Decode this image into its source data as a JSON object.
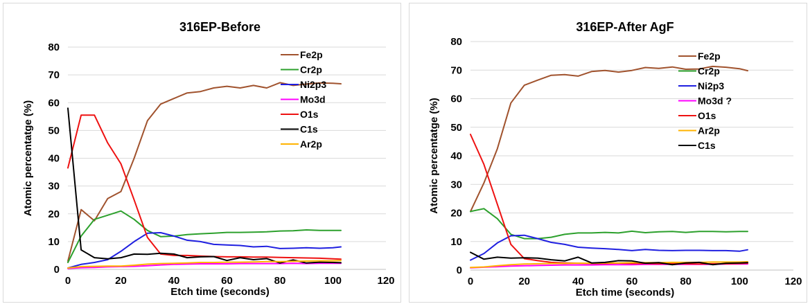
{
  "chart_data": [
    {
      "type": "line",
      "title": "316EP-Before",
      "xlabel": "Etch time (seconds)",
      "ylabel": "Atomic percentatge (%)",
      "xlim": [
        0,
        120
      ],
      "ylim": [
        0,
        80
      ],
      "xticks": [
        0,
        20,
        40,
        60,
        80,
        100,
        120
      ],
      "yticks": [
        0,
        10,
        20,
        30,
        40,
        50,
        60,
        70,
        80
      ],
      "grid": "horizontal",
      "legend": "right",
      "series": [
        {
          "name": "Fe2p",
          "color": "#a0522d",
          "x": [
            0,
            5,
            10,
            15,
            20,
            25,
            30,
            35,
            40,
            45,
            50,
            55,
            60,
            65,
            70,
            75,
            80,
            85,
            90,
            95,
            100,
            103
          ],
          "y": [
            3,
            21.5,
            17.5,
            25.5,
            28,
            40,
            53.5,
            59.5,
            61.5,
            63.5,
            64,
            65.3,
            65.9,
            65.3,
            66.2,
            65.3,
            67.2,
            66.2,
            66.7,
            67.1,
            67,
            66.8
          ]
        },
        {
          "name": "Cr2p",
          "color": "#2ca02c",
          "x": [
            0,
            5,
            10,
            15,
            20,
            25,
            30,
            35,
            40,
            45,
            50,
            55,
            60,
            65,
            70,
            75,
            80,
            85,
            90,
            95,
            100,
            103
          ],
          "y": [
            2.5,
            12,
            18,
            19.5,
            21,
            18,
            14,
            11.8,
            12,
            12.5,
            12.8,
            13,
            13.3,
            13.3,
            13.4,
            13.5,
            13.8,
            13.9,
            14.2,
            14,
            14,
            14
          ]
        },
        {
          "name": "Ni2p3",
          "color": "#1f1fe0",
          "x": [
            0,
            5,
            10,
            15,
            20,
            25,
            30,
            35,
            40,
            45,
            50,
            55,
            60,
            65,
            70,
            75,
            80,
            85,
            90,
            95,
            100,
            103
          ],
          "y": [
            0.5,
            1.8,
            2.5,
            3.5,
            6.5,
            10,
            13,
            13.2,
            12,
            10.5,
            10,
            9,
            8.8,
            8.6,
            8.1,
            8.3,
            7.5,
            7.6,
            7.8,
            7.6,
            7.8,
            8.1
          ]
        },
        {
          "name": "Mo3d",
          "color": "#ff00ff",
          "x": [
            0,
            5,
            10,
            15,
            20,
            25,
            30,
            35,
            40,
            45,
            50,
            55,
            60,
            65,
            70,
            75,
            80,
            85,
            90,
            95,
            100,
            103
          ],
          "y": [
            0.3,
            0.6,
            0.7,
            0.9,
            1,
            1.1,
            1.3,
            1.6,
            1.8,
            1.9,
            2,
            2,
            2,
            2.1,
            2.1,
            2.1,
            2.1,
            2.2,
            2.1,
            2.2,
            2.2,
            2.2
          ]
        },
        {
          "name": "O1s",
          "color": "#ee1111",
          "x": [
            0,
            5,
            10,
            15,
            20,
            25,
            30,
            35,
            40,
            45,
            50,
            55,
            60,
            65,
            70,
            75,
            80,
            85,
            90,
            95,
            100,
            103
          ],
          "y": [
            36.5,
            55.5,
            55.5,
            45.5,
            38,
            25,
            11.5,
            5.5,
            5,
            5,
            4.8,
            4.6,
            4.5,
            4.5,
            4.4,
            4.4,
            4.3,
            4.2,
            4.1,
            4,
            3.8,
            3.7
          ]
        },
        {
          "name": "C1s",
          "color": "#000000",
          "x": [
            0,
            5,
            10,
            15,
            20,
            25,
            30,
            35,
            40,
            45,
            50,
            55,
            60,
            65,
            70,
            75,
            80,
            85,
            90,
            95,
            100,
            103
          ],
          "y": [
            58,
            7,
            4.2,
            3.8,
            4.2,
            5.5,
            5.4,
            5.8,
            5.5,
            4.2,
            4.5,
            4.6,
            3.2,
            4.2,
            3.5,
            3.9,
            2.3,
            3.4,
            2.3,
            2.6,
            2.5,
            2.4
          ]
        },
        {
          "name": "Ar2p",
          "color": "#ffb300",
          "x": [
            0,
            5,
            10,
            15,
            20,
            25,
            30,
            35,
            40,
            45,
            50,
            55,
            60,
            65,
            70,
            75,
            80,
            85,
            90,
            95,
            100,
            103
          ],
          "y": [
            0.5,
            1,
            1.1,
            1.2,
            1.2,
            1.5,
            1.9,
            2.1,
            2.2,
            2.3,
            2.5,
            2.5,
            2.6,
            2.6,
            2.7,
            2.8,
            2.8,
            2.9,
            3,
            3.1,
            3.1,
            3.2
          ]
        }
      ]
    },
    {
      "type": "line",
      "title": "316EP-After AgF",
      "xlabel": "Etch time (seconds)",
      "ylabel": "Atomic percentatge (%)",
      "xlim": [
        0,
        120
      ],
      "ylim": [
        0,
        80
      ],
      "xticks": [
        0,
        20,
        40,
        60,
        80,
        100,
        120
      ],
      "yticks": [
        0,
        10,
        20,
        30,
        40,
        50,
        60,
        70,
        80
      ],
      "grid": "horizontal",
      "legend": "right",
      "series": [
        {
          "name": "Fe2p",
          "color": "#a0522d",
          "x": [
            0,
            5,
            10,
            15,
            20,
            25,
            30,
            35,
            40,
            45,
            50,
            55,
            60,
            65,
            70,
            75,
            80,
            85,
            90,
            95,
            100,
            103
          ],
          "y": [
            20.5,
            30.5,
            42.5,
            58.5,
            64.7,
            66.5,
            68.2,
            68.4,
            67.9,
            69.5,
            69.9,
            69.3,
            69.9,
            70.9,
            70.6,
            71.1,
            70.3,
            70.4,
            71.3,
            71,
            70.5,
            69.8
          ]
        },
        {
          "name": "Cr2p",
          "color": "#2ca02c",
          "x": [
            0,
            5,
            10,
            15,
            20,
            25,
            30,
            35,
            40,
            45,
            50,
            55,
            60,
            65,
            70,
            75,
            80,
            85,
            90,
            95,
            100,
            103
          ],
          "y": [
            20.5,
            21.5,
            18,
            12.5,
            11,
            11,
            11.5,
            12.5,
            13,
            13,
            13.2,
            13,
            13.6,
            13.1,
            13.4,
            13.5,
            13.2,
            13.5,
            13.5,
            13.4,
            13.5,
            13.5
          ]
        },
        {
          "name": "Ni2p3",
          "color": "#1f1fe0",
          "x": [
            0,
            5,
            10,
            15,
            20,
            25,
            30,
            35,
            40,
            45,
            50,
            55,
            60,
            65,
            70,
            75,
            80,
            85,
            90,
            95,
            100,
            103
          ],
          "y": [
            3.5,
            5.8,
            9.5,
            12,
            12.2,
            11,
            9.7,
            9,
            8,
            7.7,
            7.5,
            7.2,
            6.8,
            7.2,
            6.9,
            6.8,
            6.9,
            6.9,
            6.8,
            6.8,
            6.6,
            7.1
          ]
        },
        {
          "name": "Mo3d ?",
          "color": "#ff00ff",
          "x": [
            0,
            5,
            10,
            15,
            20,
            25,
            30,
            35,
            40,
            45,
            50,
            55,
            60,
            65,
            70,
            75,
            80,
            85,
            90,
            95,
            100,
            103
          ],
          "y": [
            0.8,
            1,
            1.2,
            1.4,
            1.5,
            1.6,
            1.7,
            1.8,
            1.8,
            1.8,
            1.9,
            1.9,
            1.9,
            2,
            2,
            2,
            2,
            2,
            2,
            2.1,
            2.1,
            2.1
          ]
        },
        {
          "name": "O1s",
          "color": "#ee1111",
          "x": [
            0,
            5,
            10,
            15,
            20,
            25,
            30,
            35,
            40,
            45,
            50,
            55,
            60,
            65,
            70,
            75,
            80,
            85,
            90,
            95,
            100,
            103
          ],
          "y": [
            47.5,
            37,
            23,
            9,
            4,
            3.3,
            2.7,
            2.5,
            2.4,
            2.3,
            2.3,
            2.4,
            2.3,
            2.3,
            2.2,
            2.3,
            2.2,
            2.1,
            2.2,
            2.2,
            2.3,
            2.4
          ]
        },
        {
          "name": "Ar2p",
          "color": "#ffb300",
          "x": [
            0,
            5,
            10,
            15,
            20,
            25,
            30,
            35,
            40,
            45,
            50,
            55,
            60,
            65,
            70,
            75,
            80,
            85,
            90,
            95,
            100,
            103
          ],
          "y": [
            0.9,
            1.1,
            1.5,
            1.9,
            2.1,
            2.2,
            2.3,
            2.3,
            2.4,
            2.4,
            2.5,
            2.5,
            2.6,
            2.6,
            2.6,
            2.7,
            2.7,
            2.7,
            2.8,
            2.8,
            2.8,
            2.9
          ]
        },
        {
          "name": "C1s",
          "color": "#000000",
          "x": [
            0,
            5,
            10,
            15,
            20,
            25,
            30,
            35,
            40,
            45,
            50,
            55,
            60,
            65,
            70,
            75,
            80,
            85,
            90,
            95,
            100,
            103
          ],
          "y": [
            6.2,
            3.8,
            4.5,
            4.2,
            4.3,
            4.2,
            3.6,
            3.2,
            4.5,
            2.5,
            2.7,
            3.3,
            3.2,
            2.4,
            2.6,
            1.9,
            2.5,
            2.7,
            1.9,
            2.4,
            2.5,
            2.6
          ]
        }
      ]
    }
  ]
}
